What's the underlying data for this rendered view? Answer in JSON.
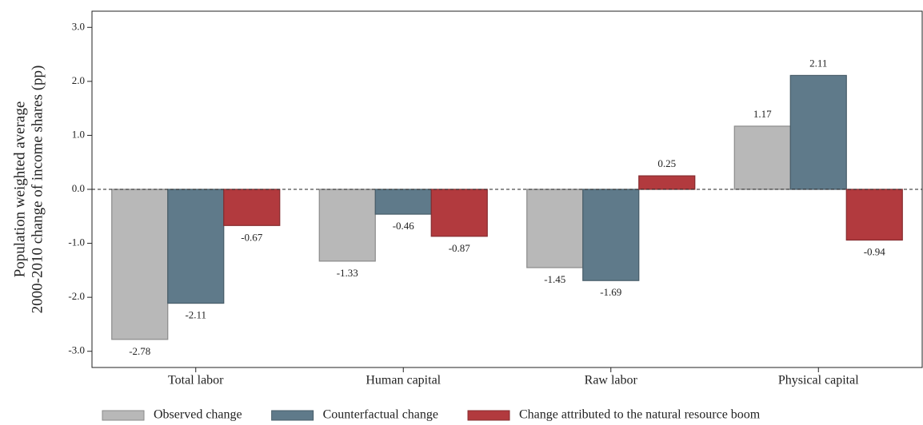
{
  "chart_data": {
    "type": "bar",
    "ylabel": [
      "Population weighted average",
      "2000-2010 change of income shares (pp)"
    ],
    "categories": [
      "Total labor",
      "Human capital",
      "Raw labor",
      "Physical capital"
    ],
    "series": [
      {
        "name": "Observed change",
        "color": "#b8b8b8",
        "values": [
          -2.78,
          -1.33,
          -1.45,
          1.17
        ]
      },
      {
        "name": "Counterfactual change",
        "color": "#5f7a8a",
        "values": [
          -2.11,
          -0.46,
          -1.69,
          2.11
        ]
      },
      {
        "name": "Change attributed to the natural resource boom",
        "color": "#b23a3e",
        "values": [
          -0.67,
          -0.87,
          0.25,
          -0.94
        ]
      }
    ],
    "ylim": [
      -3.3,
      3.3
    ],
    "yticks": [
      {
        "value": -3,
        "label": "-3.0"
      },
      {
        "value": -2,
        "label": "-2.0"
      },
      {
        "value": -1,
        "label": "-1.0"
      },
      {
        "value": 0,
        "label": "0.0"
      },
      {
        "value": 1,
        "label": "1.0"
      },
      {
        "value": 2,
        "label": "2.0"
      },
      {
        "value": 3,
        "label": "3.0"
      }
    ],
    "legend": "bottom"
  }
}
